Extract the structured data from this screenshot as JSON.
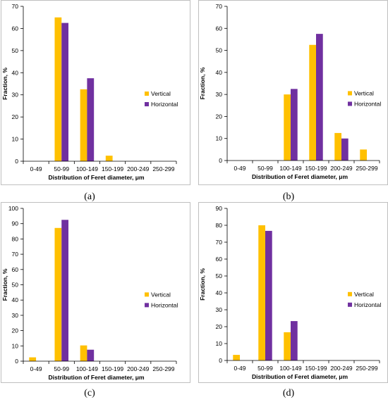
{
  "colors": {
    "vertical": "#FFC000",
    "horizontal": "#7030A0",
    "axis": "#000000",
    "frame": "#bfbfbf"
  },
  "chart_data": [
    {
      "type": "bar",
      "panel": "(a)",
      "categories": [
        "0-49",
        "50-99",
        "100-149",
        "150-199",
        "200-249",
        "250-299"
      ],
      "series": [
        {
          "name": "Vertical",
          "values": [
            0,
            65,
            32.5,
            2.5,
            0,
            0
          ]
        },
        {
          "name": "Horizontal",
          "values": [
            0,
            62.5,
            37.5,
            0,
            0,
            0
          ]
        }
      ],
      "ylim": [
        0,
        70
      ],
      "yticks": [
        0,
        10,
        20,
        30,
        40,
        50,
        60,
        70
      ],
      "xlabel": "Distribution of Feret diameter, μm",
      "ylabel": "Fraction, %",
      "legend": "right"
    },
    {
      "type": "bar",
      "panel": "(b)",
      "categories": [
        "0-49",
        "50-99",
        "100-149",
        "150-199",
        "200-249",
        "250-299"
      ],
      "series": [
        {
          "name": "Vertical",
          "values": [
            0,
            0,
            30,
            52.5,
            12.5,
            5
          ]
        },
        {
          "name": "Horizontal",
          "values": [
            0,
            0,
            32.5,
            57.5,
            10,
            0
          ]
        }
      ],
      "ylim": [
        0,
        70
      ],
      "yticks": [
        0,
        10,
        20,
        30,
        40,
        50,
        60,
        70
      ],
      "xlabel": "Distribution of Feret diameter, μm",
      "ylabel": "Fraction, %",
      "legend": "right"
    },
    {
      "type": "bar",
      "panel": "(c)",
      "categories": [
        "0-49",
        "50-99",
        "100-149",
        "150-199",
        "200-249",
        "250-299"
      ],
      "series": [
        {
          "name": "Vertical",
          "values": [
            2.5,
            87.2,
            10.3,
            0,
            0,
            0
          ]
        },
        {
          "name": "Horizontal",
          "values": [
            0,
            92.5,
            7.5,
            0,
            0,
            0
          ]
        }
      ],
      "ylim": [
        0,
        100
      ],
      "yticks": [
        0,
        10,
        20,
        30,
        40,
        50,
        60,
        70,
        80,
        90,
        100
      ],
      "xlabel": "Distribution of Feret diameter, μm",
      "ylabel": "Fraction, %",
      "legend": "right"
    },
    {
      "type": "bar",
      "panel": "(d)",
      "categories": [
        "0-49",
        "50-99",
        "100-149",
        "150-199",
        "200-249",
        "250-299"
      ],
      "series": [
        {
          "name": "Vertical",
          "values": [
            3.3,
            80,
            16.7,
            0,
            0,
            0
          ]
        },
        {
          "name": "Horizontal",
          "values": [
            0,
            76.7,
            23.3,
            0,
            0,
            0
          ]
        }
      ],
      "ylim": [
        0,
        90
      ],
      "yticks": [
        0,
        10,
        20,
        30,
        40,
        50,
        60,
        70,
        80,
        90
      ],
      "xlabel": "Distribution of Feret diameter, μm",
      "ylabel": "Fraction, %",
      "legend": "right"
    }
  ]
}
